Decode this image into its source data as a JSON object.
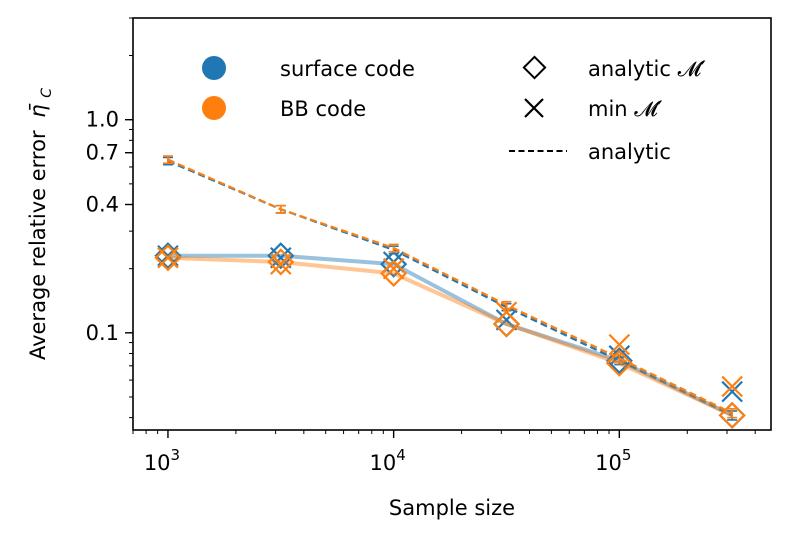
{
  "chart_data": {
    "type": "line",
    "title": "",
    "xlabel": "Sample size",
    "ylabel": "Average relative error",
    "ylabel_symbol": "η̄",
    "ylabel_subscript": "C",
    "x_scale": "log",
    "y_scale": "log",
    "xlim": [
      700,
      470000
    ],
    "ylim": [
      0.035,
      3.0
    ],
    "x_ticks": [
      {
        "value": 1000,
        "base": "10",
        "exp": "3"
      },
      {
        "value": 10000,
        "base": "10",
        "exp": "4"
      },
      {
        "value": 100000,
        "base": "10",
        "exp": "5"
      }
    ],
    "y_ticks": [
      {
        "value": 1.0,
        "label": "1.0"
      },
      {
        "value": 0.7,
        "label": "0.7"
      },
      {
        "value": 0.4,
        "label": "0.4"
      },
      {
        "value": 0.1,
        "label": "0.1"
      }
    ],
    "x": [
      1000,
      3162,
      10000,
      31623,
      100000,
      316228
    ],
    "series": [
      {
        "name": "surface code",
        "color": "#1f77b4",
        "analytic_M": [
          0.23,
          0.23,
          0.21,
          0.11,
          0.074,
          0.041
        ],
        "min_M": [
          0.23,
          0.225,
          0.215,
          0.115,
          0.078,
          0.053
        ],
        "analytic": [
          0.64,
          0.38,
          0.245,
          0.132,
          0.074,
          0.041
        ],
        "analytic_err": [
          0.025,
          0.015,
          0.01,
          0.005,
          0.003,
          0.002
        ]
      },
      {
        "name": "BB code",
        "color": "#ff7f0e",
        "analytic_M": [
          0.225,
          0.215,
          0.19,
          0.11,
          0.072,
          0.041
        ],
        "min_M": [
          0.225,
          0.21,
          0.2,
          0.125,
          0.088,
          0.056
        ],
        "analytic": [
          0.65,
          0.38,
          0.25,
          0.135,
          0.076,
          0.042
        ],
        "analytic_err": [
          0.025,
          0.015,
          0.01,
          0.005,
          0.003,
          0.002
        ]
      }
    ],
    "legend": {
      "placement": "top",
      "series_entries": [
        "surface code",
        "BB code"
      ],
      "style_entries": [
        {
          "marker": "diamond",
          "label": "analytic 𝓜′"
        },
        {
          "marker": "x",
          "label": "min 𝓜′"
        },
        {
          "marker": "dashed",
          "label": "analytic"
        }
      ]
    }
  }
}
